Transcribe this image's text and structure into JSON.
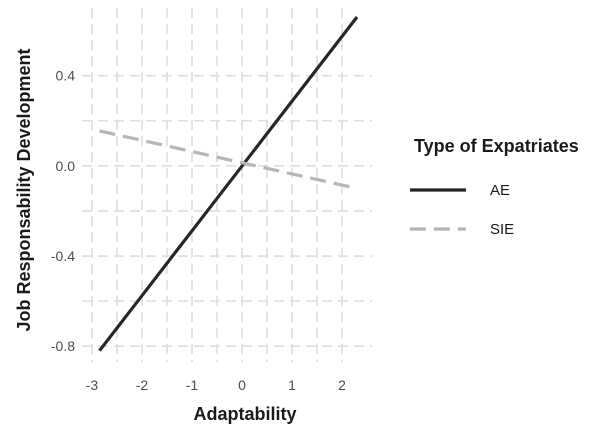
{
  "chart_data": {
    "type": "line",
    "xlabel": "Adaptability",
    "ylabel": "Job Responsability Development",
    "xlim": [
      -3.2,
      2.6
    ],
    "ylim": [
      -0.87,
      0.7
    ],
    "xticks": [
      -3,
      -2,
      -1,
      0,
      1,
      2
    ],
    "xtick_labels": [
      "-3",
      "-2",
      "-1",
      "0",
      "1",
      "2"
    ],
    "yticks": [
      -0.8,
      -0.4,
      0.0,
      0.4
    ],
    "ytick_labels": [
      "-0.8",
      "-0.4",
      "0.0",
      "0.4"
    ],
    "grid": true,
    "legend": {
      "title": "Type of Expatriates",
      "placement": "right"
    },
    "series": [
      {
        "name": "AE",
        "line_style": "solid",
        "color": "#262626",
        "x": [
          -2.85,
          2.3
        ],
        "y": [
          -0.82,
          0.66
        ]
      },
      {
        "name": "SIE",
        "line_style": "dashed",
        "color": "#b5b5b5",
        "x": [
          -2.85,
          2.2
        ],
        "y": [
          0.155,
          -0.095
        ]
      }
    ]
  }
}
